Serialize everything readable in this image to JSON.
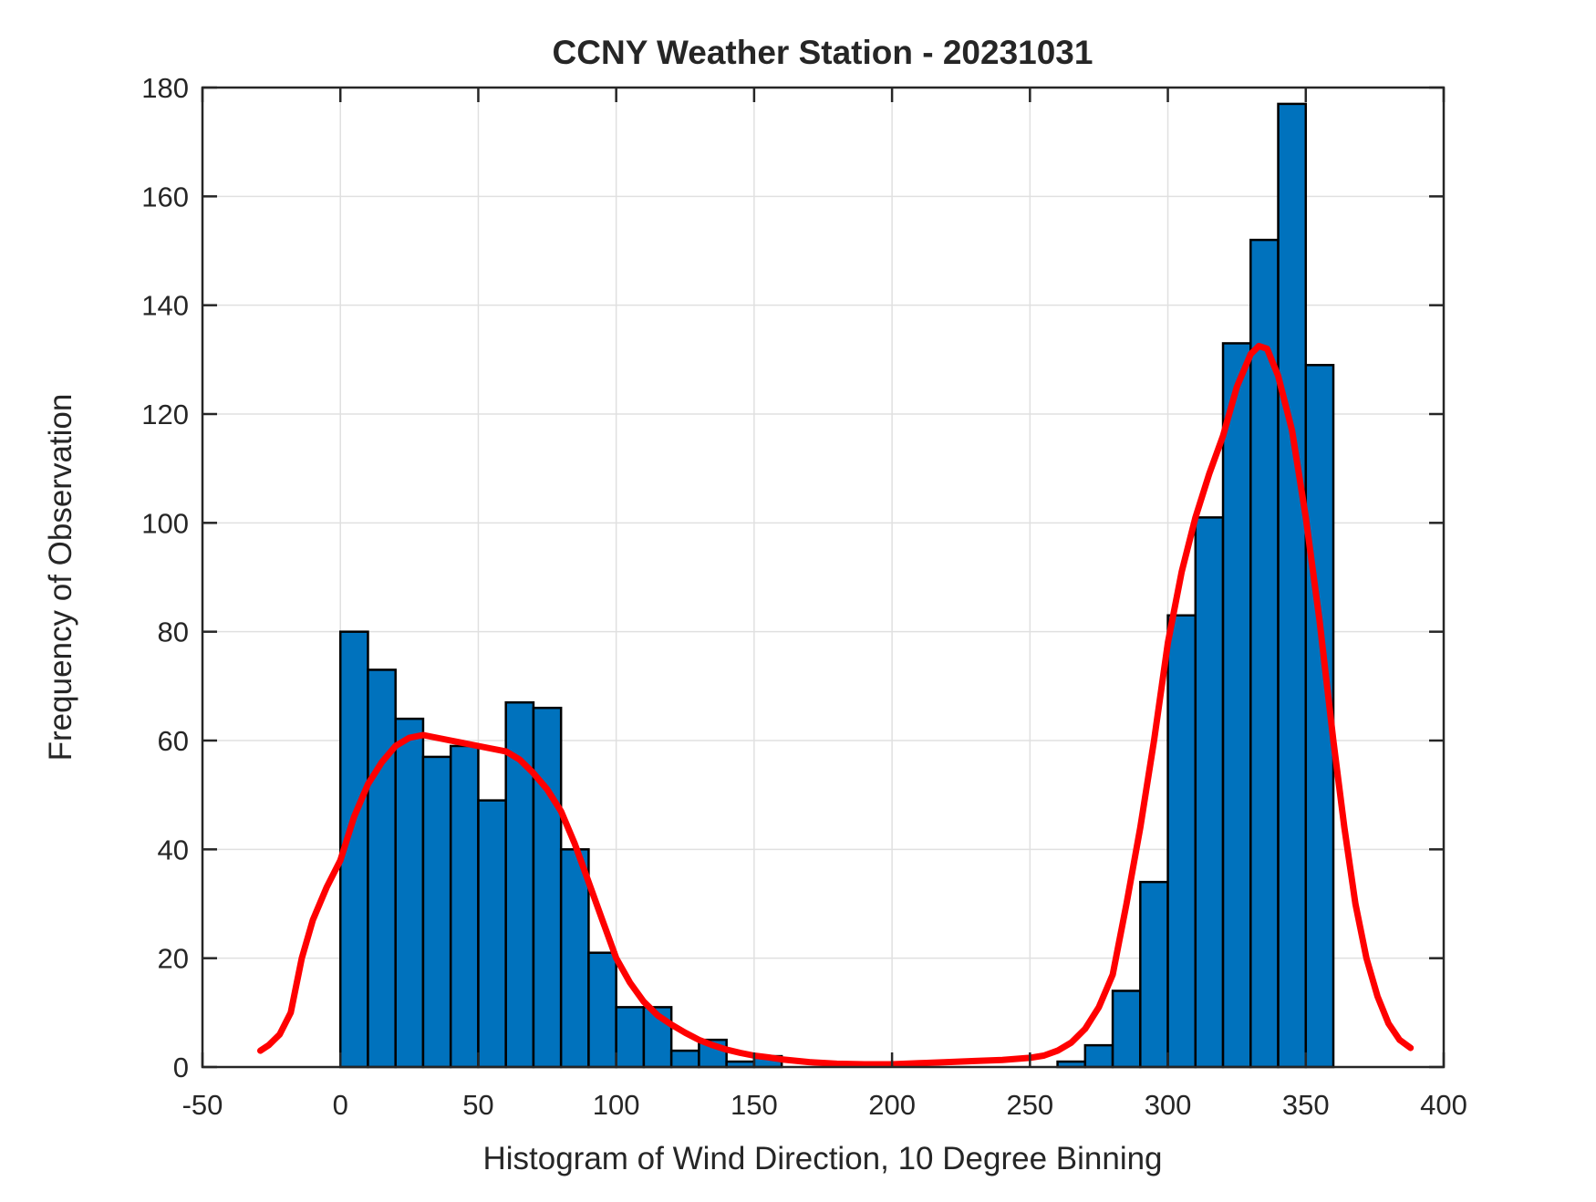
{
  "window": {
    "background": "#ffffff"
  },
  "chart_data": {
    "type": "bar",
    "subtype": "histogram-with-kde-curve",
    "title": "CCNY Weather Station - 20231031",
    "xlabel": "Histogram of Wind Direction, 10 Degree Binning",
    "ylabel": "Frequency of Observation",
    "xlim": [
      -50,
      400
    ],
    "ylim": [
      0,
      180
    ],
    "grid": true,
    "legend": "none",
    "xticks": [
      -50,
      0,
      50,
      100,
      150,
      200,
      250,
      300,
      350,
      400
    ],
    "xtick_labels": [
      "-50",
      "0",
      "50",
      "100",
      "150",
      "200",
      "250",
      "300",
      "350",
      "400"
    ],
    "yticks": [
      0,
      20,
      40,
      60,
      80,
      100,
      120,
      140,
      160,
      180
    ],
    "ytick_labels": [
      "0",
      "20",
      "40",
      "60",
      "80",
      "100",
      "120",
      "140",
      "160",
      "180"
    ],
    "bin_width_degrees": 10,
    "bin_edges": [
      0,
      10,
      20,
      30,
      40,
      50,
      60,
      70,
      80,
      90,
      100,
      110,
      120,
      130,
      140,
      150,
      160,
      170,
      180,
      190,
      200,
      210,
      220,
      230,
      240,
      250,
      260,
      270,
      280,
      290,
      300,
      310,
      320,
      330,
      340,
      350,
      360
    ],
    "counts": [
      80,
      73,
      64,
      57,
      59,
      49,
      67,
      66,
      40,
      21,
      11,
      11,
      3,
      5,
      1,
      2,
      0,
      0,
      0,
      0,
      0,
      0,
      0,
      0,
      0,
      0,
      1,
      4,
      14,
      34,
      83,
      101,
      133,
      152,
      177,
      129
    ],
    "kde_curve": {
      "name": "kernel-density-fit",
      "points": [
        [
          -29,
          3
        ],
        [
          -26,
          4
        ],
        [
          -22,
          6
        ],
        [
          -18,
          10
        ],
        [
          -14,
          20
        ],
        [
          -10,
          27
        ],
        [
          -5,
          33
        ],
        [
          0,
          38
        ],
        [
          5,
          46
        ],
        [
          10,
          52
        ],
        [
          15,
          56
        ],
        [
          20,
          59
        ],
        [
          25,
          60.5
        ],
        [
          30,
          61
        ],
        [
          35,
          60.5
        ],
        [
          40,
          60
        ],
        [
          45,
          59.5
        ],
        [
          50,
          59
        ],
        [
          55,
          58.5
        ],
        [
          60,
          58
        ],
        [
          65,
          56.5
        ],
        [
          70,
          54
        ],
        [
          75,
          51
        ],
        [
          80,
          47
        ],
        [
          85,
          41
        ],
        [
          90,
          34
        ],
        [
          95,
          27
        ],
        [
          100,
          20
        ],
        [
          105,
          15.5
        ],
        [
          110,
          12
        ],
        [
          115,
          9.5
        ],
        [
          120,
          7.8
        ],
        [
          125,
          6.3
        ],
        [
          130,
          5
        ],
        [
          135,
          4
        ],
        [
          140,
          3.2
        ],
        [
          145,
          2.6
        ],
        [
          150,
          2.1
        ],
        [
          155,
          1.8
        ],
        [
          160,
          1.4
        ],
        [
          170,
          0.9
        ],
        [
          180,
          0.6
        ],
        [
          190,
          0.5
        ],
        [
          200,
          0.5
        ],
        [
          210,
          0.7
        ],
        [
          220,
          0.9
        ],
        [
          230,
          1.1
        ],
        [
          240,
          1.3
        ],
        [
          250,
          1.7
        ],
        [
          255,
          2.1
        ],
        [
          260,
          3
        ],
        [
          265,
          4.5
        ],
        [
          270,
          7
        ],
        [
          275,
          11
        ],
        [
          280,
          17
        ],
        [
          285,
          30
        ],
        [
          290,
          44
        ],
        [
          295,
          60
        ],
        [
          300,
          78
        ],
        [
          305,
          91
        ],
        [
          310,
          101
        ],
        [
          315,
          109
        ],
        [
          320,
          116
        ],
        [
          325,
          125
        ],
        [
          330,
          131
        ],
        [
          333,
          132.5
        ],
        [
          336,
          132
        ],
        [
          340,
          127
        ],
        [
          345,
          117
        ],
        [
          350,
          101
        ],
        [
          355,
          82
        ],
        [
          360,
          60
        ],
        [
          364,
          44
        ],
        [
          368,
          30
        ],
        [
          372,
          20
        ],
        [
          376,
          13
        ],
        [
          380,
          8
        ],
        [
          384,
          5
        ],
        [
          388,
          3.5
        ]
      ]
    },
    "colors": {
      "bar_fill": "#0072BD",
      "bar_edge": "#000000",
      "curve": "#FF0000",
      "grid": "#E0E0E0",
      "axis": "#262626",
      "background": "#FFFFFF"
    }
  }
}
